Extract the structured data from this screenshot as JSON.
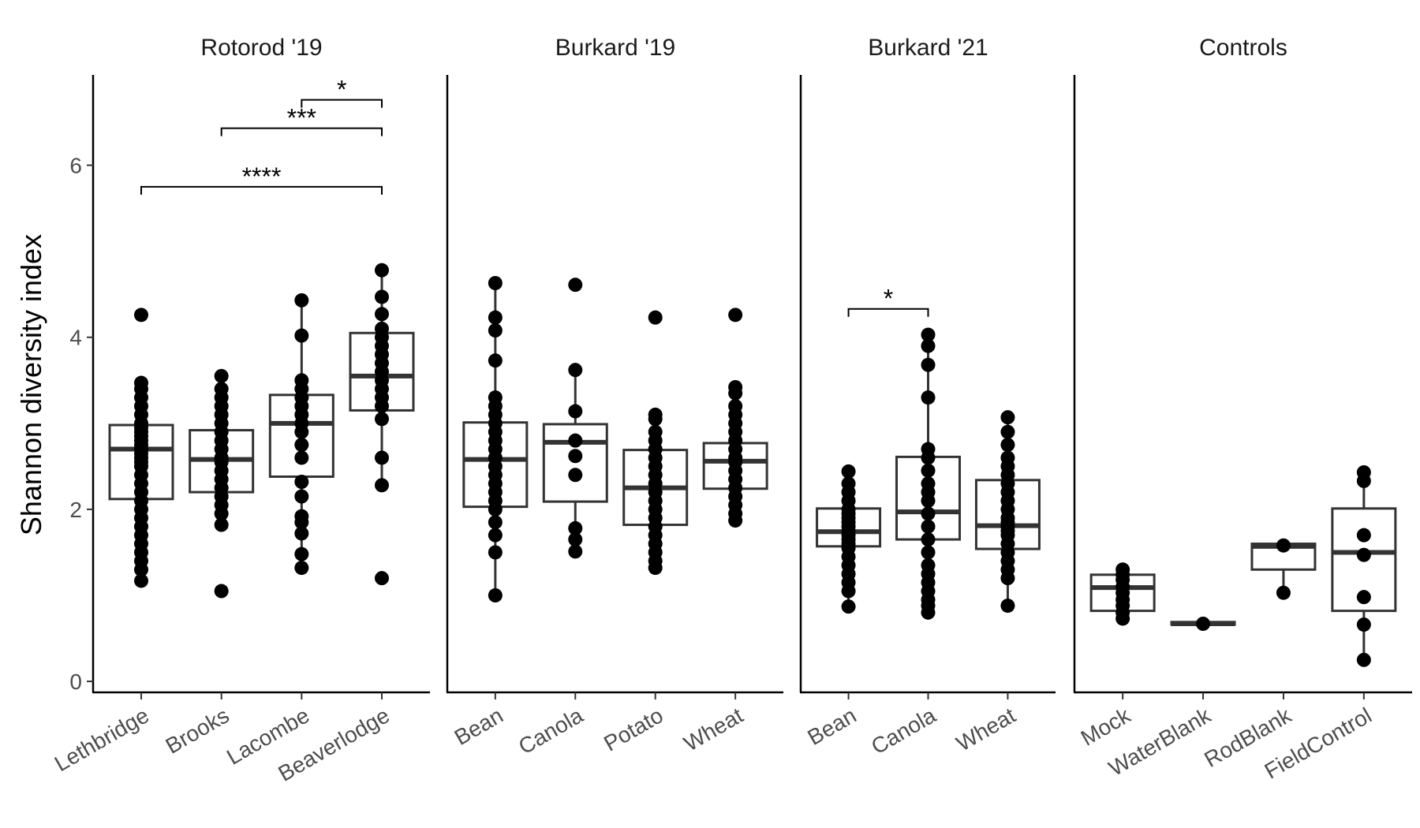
{
  "chart_data": {
    "type": "boxplot",
    "ylabel": "Shannon diversity index",
    "ylim": [
      -0.1,
      7.05
    ],
    "yticks": [
      0,
      2,
      4,
      6
    ],
    "legend": "none",
    "grid": false,
    "panels": [
      {
        "title": "Rotorod '19",
        "groups": [
          {
            "label": "Lethbridge",
            "q1": 2.12,
            "median": 2.7,
            "q3": 2.98,
            "whisker_low": 1.17,
            "whisker_high": 3.47,
            "points": [
              1.17,
              1.3,
              1.4,
              1.5,
              1.6,
              1.7,
              1.8,
              1.9,
              2.0,
              2.1,
              2.2,
              2.3,
              2.4,
              2.5,
              2.55,
              2.6,
              2.65,
              2.7,
              2.75,
              2.8,
              2.85,
              2.9,
              2.95,
              3.0,
              3.1,
              3.2,
              3.3,
              3.4,
              3.47,
              4.26
            ]
          },
          {
            "label": "Brooks",
            "q1": 2.2,
            "median": 2.58,
            "q3": 2.92,
            "whisker_low": 1.82,
            "whisker_high": 3.55,
            "points": [
              1.05,
              1.82,
              1.95,
              2.05,
              2.15,
              2.25,
              2.35,
              2.45,
              2.55,
              2.6,
              2.7,
              2.8,
              2.9,
              3.0,
              3.1,
              3.2,
              3.3,
              3.4,
              3.55
            ]
          },
          {
            "label": "Lacombe",
            "q1": 2.38,
            "median": 3.0,
            "q3": 3.33,
            "whisker_low": 1.32,
            "whisker_high": 4.43,
            "points": [
              1.32,
              1.48,
              1.72,
              1.85,
              1.92,
              2.15,
              2.32,
              2.6,
              2.75,
              2.9,
              3.0,
              3.1,
              3.2,
              3.3,
              3.4,
              3.5,
              4.02,
              4.43
            ]
          },
          {
            "label": "Beaverlodge",
            "q1": 3.15,
            "median": 3.55,
            "q3": 4.05,
            "whisker_low": 2.28,
            "whisker_high": 4.78,
            "points": [
              1.2,
              2.28,
              2.6,
              3.05,
              3.2,
              3.3,
              3.4,
              3.5,
              3.6,
              3.7,
              3.8,
              3.9,
              4.0,
              4.1,
              4.27,
              4.47,
              4.78
            ]
          }
        ],
        "comparisons": [
          {
            "from": "Lethbridge",
            "to": "Beaverlodge",
            "y": 5.75,
            "label": "****"
          },
          {
            "from": "Brooks",
            "to": "Beaverlodge",
            "y": 6.43,
            "label": "***"
          },
          {
            "from": "Lacombe",
            "to": "Beaverlodge",
            "y": 6.76,
            "label": "*"
          }
        ]
      },
      {
        "title": "Burkard '19",
        "groups": [
          {
            "label": "Bean",
            "q1": 2.03,
            "median": 2.58,
            "q3": 3.01,
            "whisker_low": 1.0,
            "whisker_high": 4.63,
            "points": [
              1.0,
              1.5,
              1.7,
              1.85,
              2.0,
              2.1,
              2.2,
              2.3,
              2.4,
              2.5,
              2.6,
              2.7,
              2.8,
              2.9,
              3.0,
              3.1,
              3.2,
              3.3,
              3.73,
              4.08,
              4.23,
              4.63
            ]
          },
          {
            "label": "Canola",
            "q1": 2.09,
            "median": 2.78,
            "q3": 2.99,
            "whisker_low": 1.51,
            "whisker_high": 3.62,
            "points": [
              1.51,
              1.65,
              1.78,
              2.4,
              2.62,
              2.8,
              3.14,
              3.62,
              4.61
            ]
          },
          {
            "label": "Potato",
            "q1": 1.82,
            "median": 2.25,
            "q3": 2.69,
            "whisker_low": 1.32,
            "whisker_high": 3.1,
            "points": [
              1.32,
              1.4,
              1.5,
              1.6,
              1.7,
              1.8,
              1.9,
              2.0,
              2.1,
              2.2,
              2.3,
              2.4,
              2.5,
              2.6,
              2.7,
              2.8,
              2.9,
              3.05,
              3.1,
              4.23
            ]
          },
          {
            "label": "Wheat",
            "q1": 2.24,
            "median": 2.56,
            "q3": 2.77,
            "whisker_low": 1.87,
            "whisker_high": 3.42,
            "points": [
              1.87,
              1.95,
              2.05,
              2.15,
              2.25,
              2.35,
              2.45,
              2.55,
              2.6,
              2.7,
              2.8,
              2.9,
              3.0,
              3.1,
              3.2,
              3.35,
              3.42,
              4.26
            ]
          }
        ],
        "comparisons": []
      },
      {
        "title": "Burkard '21",
        "groups": [
          {
            "label": "Bean",
            "q1": 1.57,
            "median": 1.74,
            "q3": 2.01,
            "whisker_low": 0.87,
            "whisker_high": 2.44,
            "points": [
              0.87,
              1.05,
              1.15,
              1.25,
              1.35,
              1.45,
              1.55,
              1.6,
              1.65,
              1.7,
              1.75,
              1.8,
              1.85,
              1.9,
              1.95,
              2.0,
              2.1,
              2.2,
              2.3,
              2.44
            ]
          },
          {
            "label": "Canola",
            "q1": 1.65,
            "median": 1.97,
            "q3": 2.61,
            "whisker_low": 0.8,
            "whisker_high": 4.03,
            "points": [
              0.8,
              0.88,
              0.95,
              1.05,
              1.15,
              1.25,
              1.35,
              1.5,
              1.65,
              1.8,
              1.95,
              2.1,
              2.2,
              2.3,
              2.45,
              2.6,
              2.7,
              3.3,
              3.68,
              3.9,
              4.03
            ]
          },
          {
            "label": "Wheat",
            "q1": 1.54,
            "median": 1.81,
            "q3": 2.34,
            "whisker_low": 0.88,
            "whisker_high": 3.07,
            "points": [
              0.88,
              1.2,
              1.3,
              1.4,
              1.5,
              1.6,
              1.7,
              1.75,
              1.8,
              1.85,
              1.9,
              2.0,
              2.1,
              2.2,
              2.3,
              2.4,
              2.5,
              2.6,
              2.75,
              2.9,
              3.07
            ]
          }
        ],
        "comparisons": [
          {
            "from": "Bean",
            "to": "Canola",
            "y": 4.33,
            "label": "*"
          }
        ]
      },
      {
        "title": "Controls",
        "groups": [
          {
            "label": "Mock",
            "q1": 0.82,
            "median": 1.09,
            "q3": 1.24,
            "whisker_low": 0.73,
            "whisker_high": 1.3,
            "points": [
              0.73,
              0.8,
              0.88,
              0.95,
              1.03,
              1.1,
              1.18,
              1.24,
              1.3
            ]
          },
          {
            "label": "WaterBlank",
            "q1": 0.66,
            "median": 0.67,
            "q3": 0.69,
            "whisker_low": 0.66,
            "whisker_high": 0.69,
            "points": [
              0.67
            ]
          },
          {
            "label": "RodBlank",
            "q1": 1.3,
            "median": 1.57,
            "q3": 1.6,
            "whisker_low": 1.03,
            "whisker_high": 1.6,
            "points": [
              1.03,
              1.58
            ]
          },
          {
            "label": "FieldControl",
            "q1": 0.82,
            "median": 1.5,
            "q3": 2.01,
            "whisker_low": 0.25,
            "whisker_high": 2.43,
            "points": [
              0.25,
              0.66,
              0.98,
              1.47,
              1.7,
              2.33,
              2.43
            ]
          }
        ],
        "comparisons": []
      }
    ]
  }
}
